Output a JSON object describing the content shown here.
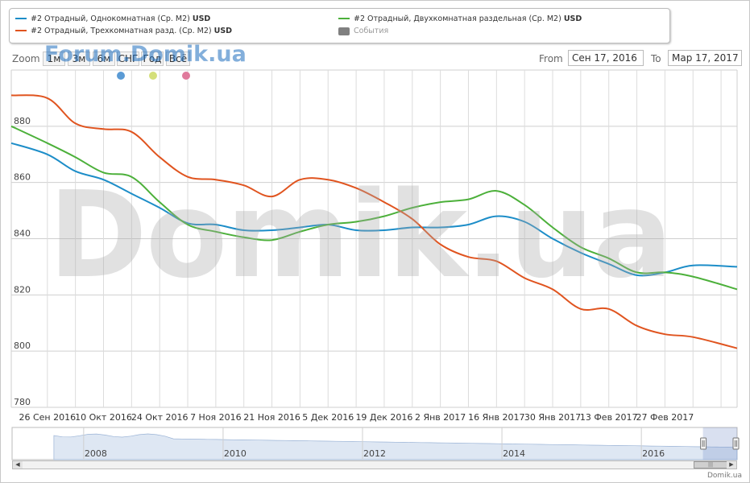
{
  "legend": {
    "items": [
      {
        "label": "#2 Отрадный, Однокомнатная (Ср. M2)",
        "unit": "USD",
        "color": "#1c8dc8"
      },
      {
        "label": "#2 Отрадный, Двухкомнатная раздельная (Ср. M2)",
        "unit": "USD",
        "color": "#4cb03a"
      },
      {
        "label": "#2 Отрадный, Трехкомнатная разд. (Ср. M2)",
        "unit": "USD",
        "color": "#e0541f"
      },
      {
        "label": "События",
        "unit": "",
        "color": "#808080"
      }
    ]
  },
  "range_selector": {
    "zoom_label": "Zoom",
    "buttons": [
      "1м",
      "3м",
      "6м",
      "СНГ",
      "Год",
      "Всё"
    ],
    "from_label": "From",
    "from_value": "Сен 17, 2016",
    "to_label": "To",
    "to_value": "Мар 17, 2017"
  },
  "watermark_top": "Forum.Domik.ua",
  "watermark_big": "Domik.ua",
  "credit": "Domik.ua",
  "event_dots": [
    "#5b9bd5",
    "#d4df7a",
    "#e07a9c"
  ],
  "chart_data": {
    "type": "line",
    "ylim": [
      780,
      900
    ],
    "yticks": [
      780,
      800,
      820,
      840,
      860,
      880
    ],
    "xticks": [
      "26 Сен 2016",
      "10 Окт 2016",
      "24 Окт 2016",
      "7 Ноя 2016",
      "21 Ноя 2016",
      "5 Дек 2016",
      "19 Дек 2016",
      "2 Янв 2017",
      "16 Янв 2017",
      "30 Янв 2017",
      "13 Фев 2017",
      "27 Фев 2017"
    ],
    "x_dates": [
      "2016-09-17",
      "2016-09-26",
      "2016-10-03",
      "2016-10-10",
      "2016-10-17",
      "2016-10-24",
      "2016-10-31",
      "2016-11-07",
      "2016-11-14",
      "2016-11-21",
      "2016-11-28",
      "2016-12-05",
      "2016-12-12",
      "2016-12-19",
      "2016-12-26",
      "2017-01-02",
      "2017-01-09",
      "2017-01-16",
      "2017-01-23",
      "2017-01-30",
      "2017-02-06",
      "2017-02-13",
      "2017-02-20",
      "2017-02-27",
      "2017-03-06",
      "2017-03-17"
    ],
    "series": [
      {
        "name": "#2 Отрадный, Однокомнатная (Ср. M2)",
        "color": "#1c8dc8",
        "values": [
          874,
          870,
          864,
          861,
          856,
          851,
          845.5,
          845,
          843,
          843,
          844,
          845,
          843,
          843,
          844,
          844,
          845,
          848,
          846,
          840,
          835,
          831,
          827,
          828,
          830.5,
          830
        ]
      },
      {
        "name": "#2 Отрадный, Двухкомнатная раздельная (Ср. M2)",
        "color": "#4cb03a",
        "values": [
          880,
          874,
          869,
          863.5,
          862,
          853,
          845,
          842.5,
          840.5,
          839.5,
          842.5,
          845,
          846,
          848,
          851,
          853,
          854,
          857,
          852,
          844,
          837,
          833,
          828,
          828,
          826.5,
          822
        ]
      },
      {
        "name": "#2 Отрадный, Трехкомнатная разд. (Ср. M2)",
        "color": "#e0541f",
        "values": [
          891,
          890,
          881,
          879,
          878,
          869,
          862,
          861,
          859,
          855,
          861,
          861,
          858,
          853,
          847,
          838,
          833.5,
          832,
          826,
          822,
          815,
          815,
          809,
          806,
          805,
          801
        ]
      }
    ]
  },
  "navigator": {
    "year_labels": [
      "2008",
      "2010",
      "2012",
      "2014",
      "2016"
    ],
    "year_positions": [
      2008,
      2010,
      2012,
      2014,
      2016
    ],
    "year_range": [
      2006.8,
      2017.2
    ]
  }
}
